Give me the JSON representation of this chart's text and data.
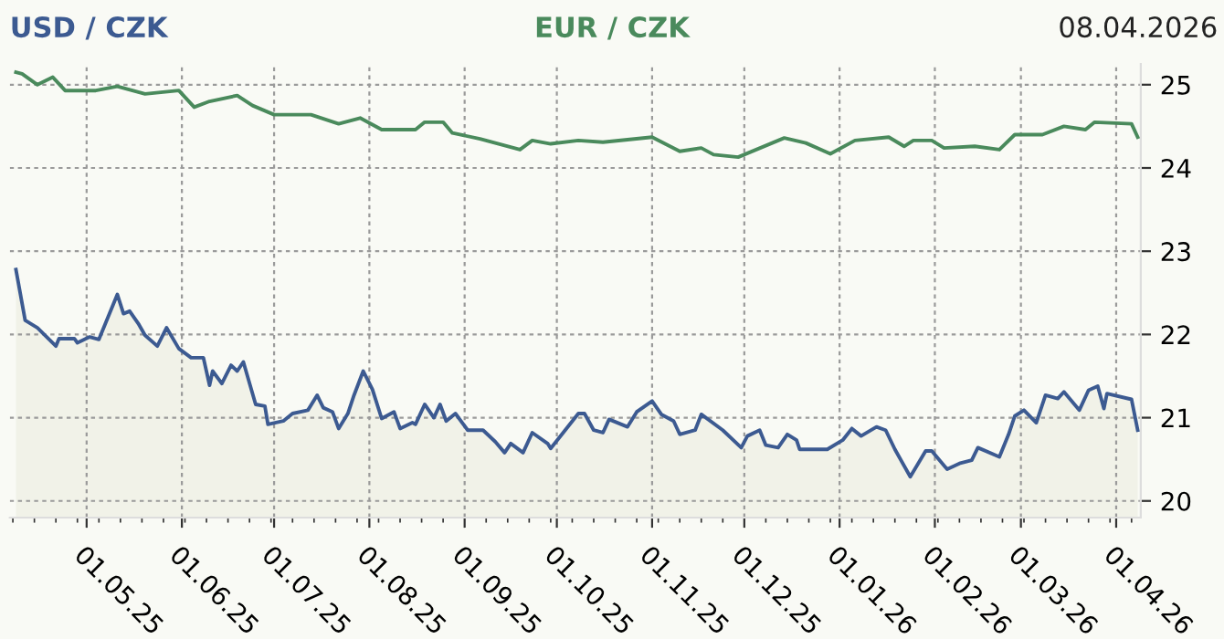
{
  "chart_data": {
    "type": "line",
    "title": "08.04.2026",
    "legend": "top",
    "ylim": [
      19.8,
      25.25
    ],
    "yticks": [
      20,
      21,
      22,
      23,
      24,
      25
    ],
    "xlim": [
      "2025-04-06",
      "2026-04-09"
    ],
    "xticks": [
      {
        "value": "2025-05-01",
        "label": "01.05.25"
      },
      {
        "value": "2025-06-01",
        "label": "01.06.25"
      },
      {
        "value": "2025-07-01",
        "label": "01.07.25"
      },
      {
        "value": "2025-08-01",
        "label": "01.08.25"
      },
      {
        "value": "2025-09-01",
        "label": "01.09.25"
      },
      {
        "value": "2025-10-01",
        "label": "01.10.25"
      },
      {
        "value": "2025-11-01",
        "label": "01.11.25"
      },
      {
        "value": "2025-12-01",
        "label": "01.12.25"
      },
      {
        "value": "2026-01-01",
        "label": "01.01.26"
      },
      {
        "value": "2026-02-01",
        "label": "01.02.26"
      },
      {
        "value": "2026-03-01",
        "label": "01.03.26"
      },
      {
        "value": "2026-04-01",
        "label": "01.04.26"
      }
    ],
    "grid": true,
    "marker": "none",
    "line_style": "solid",
    "series": [
      {
        "name": "USD / CZK",
        "type": "area",
        "color": "#3c5a91",
        "x": [
          "2025-04-08",
          "2025-04-11",
          "2025-04-15",
          "2025-04-21",
          "2025-04-22",
          "2025-04-27",
          "2025-04-28",
          "2025-05-02",
          "2025-05-05",
          "2025-05-11",
          "2025-05-13",
          "2025-05-15",
          "2025-05-18",
          "2025-05-20",
          "2025-05-24",
          "2025-05-27",
          "2025-05-31",
          "2025-06-04",
          "2025-06-08",
          "2025-06-10",
          "2025-06-11",
          "2025-06-14",
          "2025-06-17",
          "2025-06-19",
          "2025-06-21",
          "2025-06-25",
          "2025-06-28",
          "2025-06-29",
          "2025-07-04",
          "2025-07-07",
          "2025-07-12",
          "2025-07-15",
          "2025-07-17",
          "2025-07-20",
          "2025-07-22",
          "2025-07-25",
          "2025-07-27",
          "2025-07-30",
          "2025-08-02",
          "2025-08-05",
          "2025-08-09",
          "2025-08-11",
          "2025-08-15",
          "2025-08-16",
          "2025-08-19",
          "2025-08-22",
          "2025-08-24",
          "2025-08-26",
          "2025-08-29",
          "2025-09-02",
          "2025-09-07",
          "2025-09-11",
          "2025-09-14",
          "2025-09-16",
          "2025-09-20",
          "2025-09-23",
          "2025-09-28",
          "2025-09-29",
          "2025-10-08",
          "2025-10-10",
          "2025-10-13",
          "2025-10-16",
          "2025-10-18",
          "2025-10-24",
          "2025-10-27",
          "2025-11-01",
          "2025-11-04",
          "2025-11-08",
          "2025-11-10",
          "2025-11-15",
          "2025-11-17",
          "2025-11-24",
          "2025-11-30",
          "2025-12-02",
          "2025-12-06",
          "2025-12-08",
          "2025-12-12",
          "2025-12-15",
          "2025-12-18",
          "2025-12-19",
          "2025-12-28",
          "2026-01-02",
          "2026-01-05",
          "2026-01-08",
          "2026-01-13",
          "2026-01-16",
          "2026-01-19",
          "2026-01-24",
          "2026-01-29",
          "2026-01-31",
          "2026-02-05",
          "2026-02-09",
          "2026-02-13",
          "2026-02-15",
          "2026-02-22",
          "2026-02-25",
          "2026-02-27",
          "2026-03-02",
          "2026-03-06",
          "2026-03-09",
          "2026-03-13",
          "2026-03-15",
          "2026-03-20",
          "2026-03-23",
          "2026-03-26",
          "2026-03-28",
          "2026-03-29",
          "2026-04-06",
          "2026-04-08"
        ],
        "values": [
          22.78,
          22.17,
          22.08,
          21.86,
          21.95,
          21.95,
          21.9,
          21.97,
          21.94,
          22.48,
          22.25,
          22.28,
          22.12,
          21.99,
          21.86,
          22.08,
          21.83,
          21.72,
          21.72,
          21.39,
          21.56,
          21.41,
          21.63,
          21.56,
          21.67,
          21.16,
          21.14,
          20.92,
          20.96,
          21.05,
          21.09,
          21.27,
          21.12,
          21.07,
          20.87,
          21.05,
          21.27,
          21.56,
          21.34,
          20.99,
          21.07,
          20.87,
          20.94,
          20.92,
          21.16,
          21.0,
          21.16,
          20.96,
          21.05,
          20.85,
          20.85,
          20.71,
          20.58,
          20.69,
          20.58,
          20.82,
          20.69,
          20.63,
          21.05,
          21.05,
          20.85,
          20.82,
          20.98,
          20.89,
          21.07,
          21.2,
          21.04,
          20.96,
          20.8,
          20.85,
          21.04,
          20.85,
          20.64,
          20.78,
          20.85,
          20.67,
          20.64,
          20.8,
          20.73,
          20.62,
          20.62,
          20.73,
          20.87,
          20.78,
          20.89,
          20.85,
          20.62,
          20.29,
          20.6,
          20.6,
          20.38,
          20.45,
          20.49,
          20.64,
          20.53,
          20.8,
          21.02,
          21.09,
          20.94,
          21.27,
          21.23,
          21.31,
          21.09,
          21.33,
          21.38,
          21.11,
          21.29,
          21.22,
          20.85
        ]
      },
      {
        "name": "EUR / CZK",
        "color": "#4a8a5c",
        "x": [
          "2025-04-08",
          "2025-04-10",
          "2025-04-15",
          "2025-04-20",
          "2025-04-24",
          "2025-05-04",
          "2025-05-11",
          "2025-05-20",
          "2025-05-31",
          "2025-06-05",
          "2025-06-10",
          "2025-06-19",
          "2025-06-24",
          "2025-07-01",
          "2025-07-13",
          "2025-07-22",
          "2025-07-29",
          "2025-08-05",
          "2025-08-16",
          "2025-08-19",
          "2025-08-25",
          "2025-08-28",
          "2025-09-06",
          "2025-09-19",
          "2025-09-23",
          "2025-09-29",
          "2025-10-08",
          "2025-10-16",
          "2025-11-01",
          "2025-11-10",
          "2025-11-17",
          "2025-11-21",
          "2025-11-29",
          "2025-12-14",
          "2025-12-21",
          "2025-12-29",
          "2026-01-06",
          "2026-01-17",
          "2026-01-22",
          "2026-01-25",
          "2026-01-31",
          "2026-02-04",
          "2026-02-14",
          "2026-02-22",
          "2026-02-27",
          "2026-03-08",
          "2026-03-15",
          "2026-03-22",
          "2026-03-25",
          "2026-04-06",
          "2026-04-08"
        ],
        "values": [
          25.15,
          25.13,
          25.0,
          25.09,
          24.93,
          24.93,
          24.98,
          24.89,
          24.93,
          24.73,
          24.8,
          24.87,
          24.75,
          24.64,
          24.64,
          24.53,
          24.6,
          24.46,
          24.46,
          24.55,
          24.55,
          24.42,
          24.35,
          24.22,
          24.33,
          24.29,
          24.33,
          24.31,
          24.37,
          24.2,
          24.24,
          24.16,
          24.13,
          24.36,
          24.3,
          24.17,
          24.33,
          24.37,
          24.26,
          24.33,
          24.33,
          24.24,
          24.26,
          24.22,
          24.4,
          24.4,
          24.5,
          24.46,
          24.55,
          24.53,
          24.37
        ]
      }
    ]
  }
}
